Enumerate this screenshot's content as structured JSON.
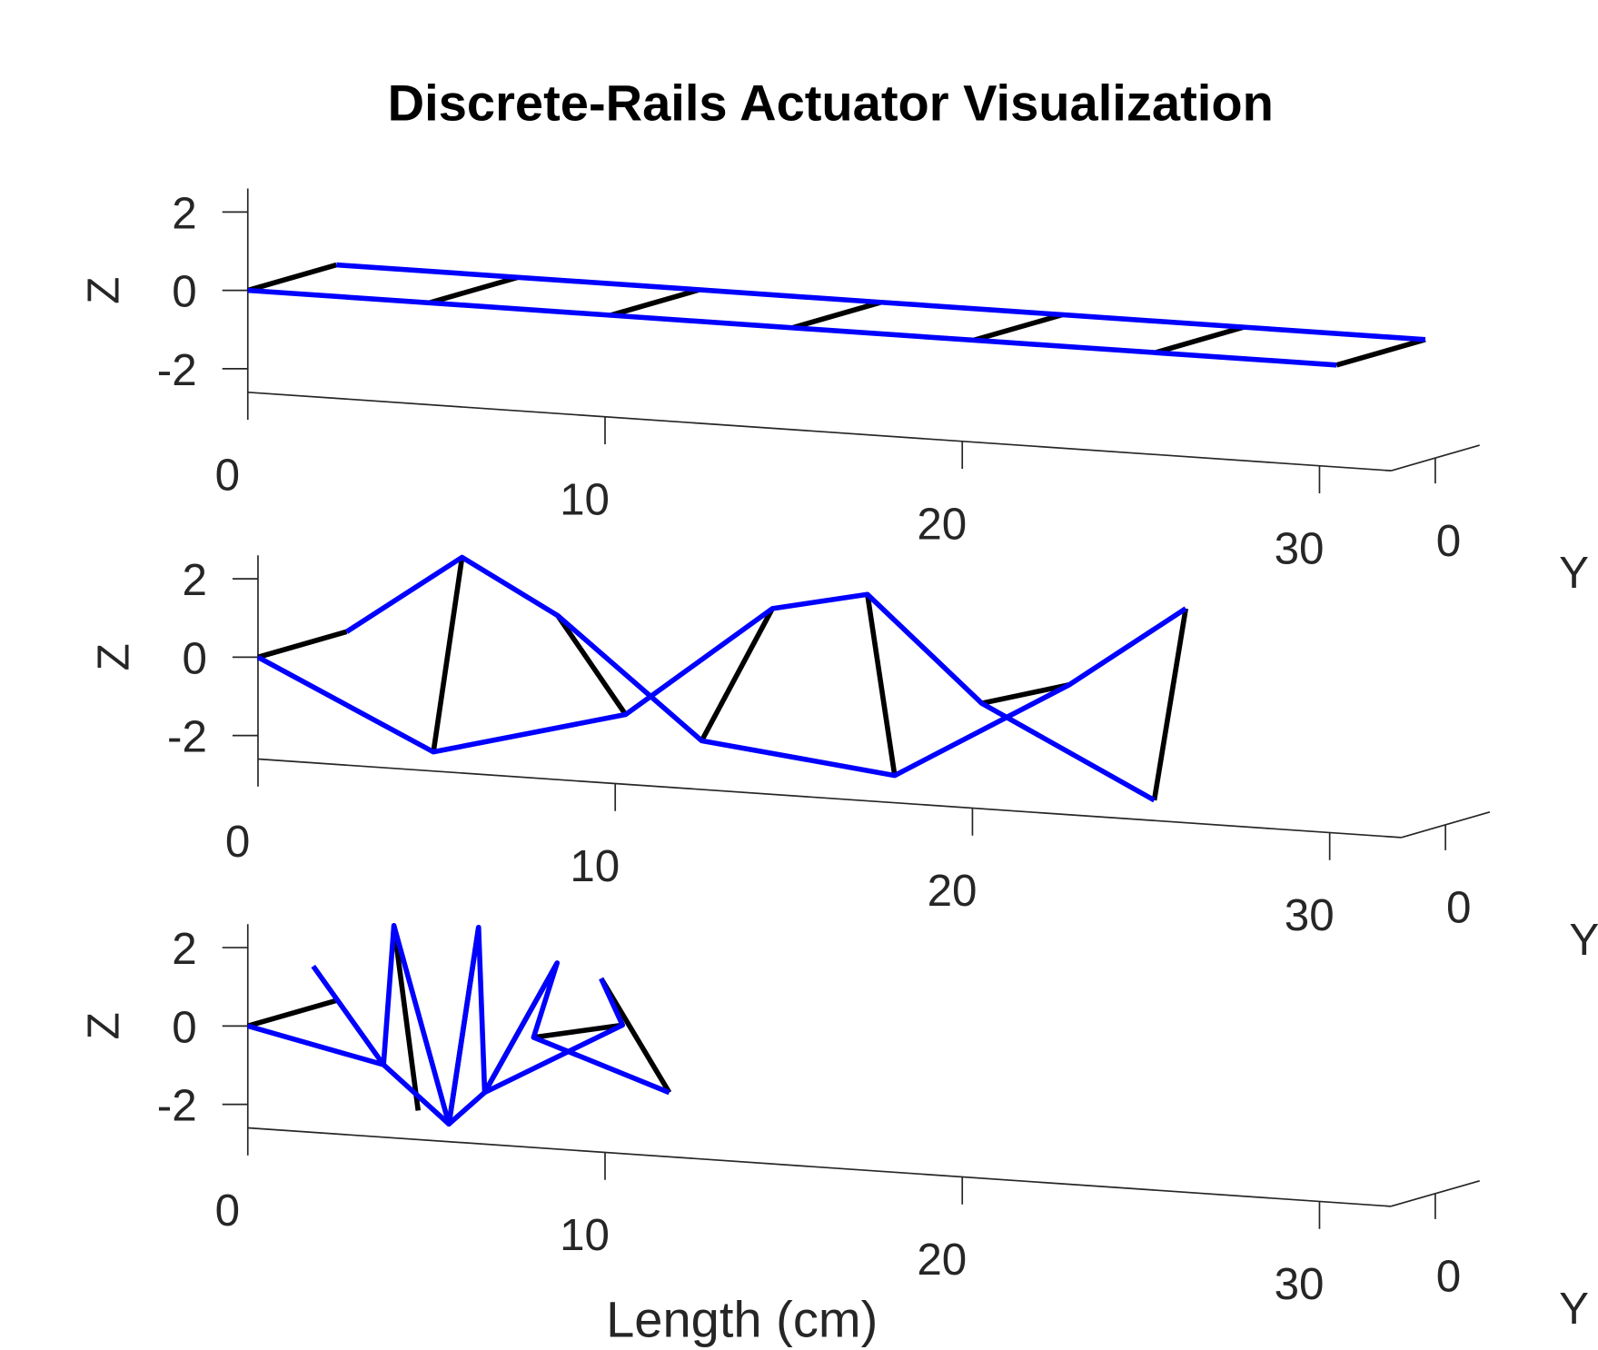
{
  "chart_data": [
    {
      "type": "line3d",
      "title": "Discrete-Rails Actuator Visualization",
      "zlabel": "Z",
      "ylabel": "Y",
      "xlim": [
        0,
        32
      ],
      "xticks": [
        0,
        10,
        20,
        30
      ],
      "ylim": [
        -1.25,
        1.25
      ],
      "yticks": [
        0
      ],
      "zlim": [
        -2.6,
        2.6
      ],
      "zticks": [
        -2,
        0,
        2
      ],
      "series": [
        {
          "color": "#000000",
          "x": [
            0,
            0,
            null,
            5.08,
            5.08,
            null,
            10.16,
            10.16,
            null,
            15.24,
            15.24,
            null,
            20.32,
            20.32,
            null,
            25.4,
            25.4,
            null,
            30.48,
            30.48
          ],
          "y": [
            -1.25,
            1.25,
            null,
            -1.25,
            1.25,
            null,
            -1.25,
            1.25,
            null,
            -1.25,
            1.25,
            null,
            -1.25,
            1.25,
            null,
            -1.25,
            1.25,
            null,
            -1.25,
            1.25
          ],
          "z": [
            0,
            0,
            null,
            0,
            0,
            null,
            0,
            0,
            null,
            0,
            0,
            null,
            0,
            0,
            null,
            0,
            0,
            null,
            0,
            0
          ]
        },
        {
          "color": "#0000ff",
          "x": [
            0,
            5.08,
            10.16,
            15.24,
            20.32,
            25.4,
            30.48
          ],
          "y": [
            -1.25,
            -1.25,
            -1.25,
            -1.25,
            -1.25,
            -1.25,
            -1.25
          ],
          "z": [
            0,
            0,
            0,
            0,
            0,
            0,
            0
          ]
        },
        {
          "color": "#0000ff",
          "x": [
            0,
            5.08,
            10.16,
            15.24,
            20.32,
            25.4,
            30.48
          ],
          "y": [
            1.25,
            1.25,
            1.25,
            1.25,
            1.25,
            1.25,
            1.25
          ],
          "z": [
            0,
            0,
            0,
            0,
            0,
            0,
            0
          ]
        }
      ]
    },
    {
      "type": "line3d",
      "zlabel": "Z",
      "ylabel": "Y",
      "xlim": [
        0,
        32
      ],
      "xticks": [
        0,
        10,
        20,
        30
      ],
      "ylim": [
        -1.25,
        1.25
      ],
      "yticks": [
        0
      ],
      "zlim": [
        -2.6,
        2.6
      ],
      "zticks": [
        -2,
        0,
        2
      ],
      "series": [
        {
          "color": "#000000",
          "x": [
            0,
            0,
            null,
            4.91,
            3.23,
            null,
            10.29,
            5.91,
            null,
            14.4,
            9.94,
            null,
            17.06,
            15.34,
            null,
            20.26,
            20.23,
            null,
            25.09,
            23.49
          ],
          "y": [
            -1.25,
            1.25,
            null,
            -1.25,
            1.25,
            null,
            -1.25,
            1.25,
            null,
            -1.25,
            1.25,
            null,
            -1.25,
            1.25,
            null,
            -1.25,
            1.25,
            null,
            -1.25,
            1.25
          ],
          "z": [
            0,
            0,
            null,
            -2.11,
            2.1,
            null,
            -0.82,
            0.78,
            null,
            2.14,
            -2.16,
            null,
            2.67,
            -2.71,
            null,
            0.09,
            -0.09,
            null,
            -2.08,
            2.06
          ]
        },
        {
          "color": "#0000ff",
          "x": [
            0,
            4.91,
            10.29,
            14.4,
            17.06,
            20.26,
            25.09
          ],
          "y": [
            -1.25,
            -1.25,
            -1.25,
            -1.25,
            -1.25,
            -1.25,
            -1.25
          ],
          "z": [
            0,
            -2.11,
            -0.82,
            2.14,
            2.67,
            0.09,
            -2.08
          ]
        },
        {
          "color": "#0000ff",
          "x": [
            0,
            3.23,
            5.91,
            9.94,
            15.34,
            20.23,
            23.49
          ],
          "y": [
            1.25,
            1.25,
            1.25,
            1.25,
            1.25,
            1.25,
            1.25
          ],
          "z": [
            0,
            2.1,
            0.78,
            -2.16,
            -2.71,
            -0.09,
            2.06
          ]
        }
      ]
    },
    {
      "type": "line3d",
      "zlabel": "Z",
      "ylabel": "Y",
      "xlabel": "Length (cm)",
      "xlim": [
        0,
        32
      ],
      "xticks": [
        0,
        10,
        20,
        30
      ],
      "ylim": [
        -1.25,
        1.25
      ],
      "yticks": [
        0
      ],
      "zlim": [
        -2.6,
        2.6
      ],
      "zticks": [
        -2,
        0,
        2
      ],
      "series": [
        {
          "color": "#000000",
          "x": [
            0,
            0,
            null,
            4.09,
            4.77,
            null,
            5.63,
            6.46,
            null,
            6.63,
            8.66,
            null,
            8.0,
            10.49,
            null,
            9.89,
            11.8
          ],
          "y": [
            -1.25,
            1.25,
            null,
            -1.25,
            -1.25,
            null,
            -1.25,
            -1.25,
            null,
            -1.25,
            -1.25,
            null,
            -1.25,
            -1.25,
            null,
            -1.25,
            -1.25
          ],
          "z": [
            0,
            0,
            null,
            2.82,
            -1.86,
            null,
            -2.15,
            2.92,
            null,
            -1.28,
            2.15,
            null,
            0.21,
            0.68,
            null,
            1.83,
            -0.96
          ]
        },
        {
          "color": "#0000ff",
          "x": [
            0,
            3.8,
            4.09,
            5.63,
            6.46,
            6.63,
            8.66,
            8.0,
            11.8
          ],
          "y": [
            -1.25,
            -1.25,
            -1.25,
            -1.25,
            -1.25,
            -1.25,
            -1.25,
            -1.25,
            -1.25
          ],
          "z": [
            0,
            -0.75,
            2.82,
            -2.15,
            2.92,
            -1.28,
            2.15,
            0.21,
            -0.96
          ]
        },
        {
          "color": "#0000ff",
          "x": [
            1.83,
            3.8,
            5.63,
            6.63,
            10.49,
            9.89
          ],
          "y": [
            -1.25,
            -1.25,
            -1.25,
            -1.25,
            -1.25,
            -1.25
          ],
          "z": [
            1.64,
            -0.75,
            -2.15,
            -1.28,
            0.68,
            1.83
          ]
        }
      ]
    }
  ]
}
